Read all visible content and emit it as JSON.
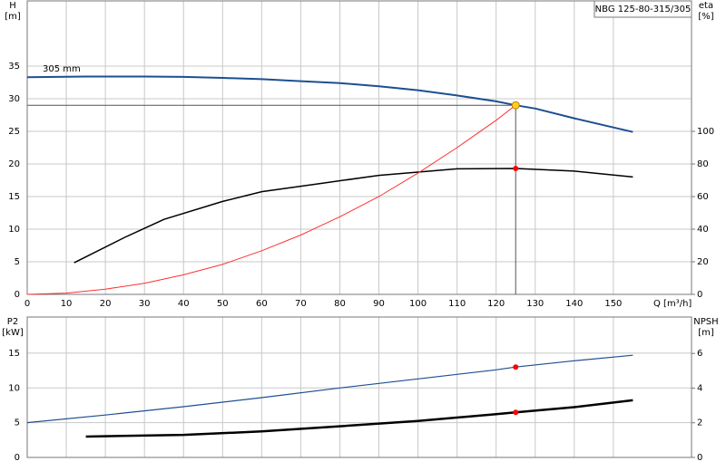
{
  "chart_data": [
    {
      "type": "line",
      "title": "NBG 125-80-315/305",
      "ylabel": "H",
      "yunit": "[m]",
      "y2label": "eta",
      "y2unit": "[%]",
      "xlabel": "Q [m³/h]",
      "annotation": "305 mm",
      "xlim": [
        0,
        170
      ],
      "xticks": [
        0,
        10,
        20,
        30,
        40,
        50,
        60,
        70,
        80,
        90,
        100,
        110,
        120,
        130,
        140,
        150
      ],
      "ylim": [
        0,
        45
      ],
      "yticks": [
        0,
        5,
        10,
        15,
        20,
        25,
        30,
        35
      ],
      "y2lim": [
        0,
        180
      ],
      "y2ticks": [
        0,
        20,
        40,
        60,
        80,
        100
      ],
      "grid": true,
      "series": [
        {
          "color": "#1d4f91",
          "width": 2,
          "x": [
            0,
            15,
            20,
            30,
            40,
            50,
            60,
            70,
            80,
            90,
            100,
            110,
            120,
            125,
            130,
            140,
            150,
            155
          ],
          "values": [
            33.3,
            33.4,
            33.4,
            33.4,
            33.35,
            33.2,
            33.0,
            32.7,
            32.4,
            31.9,
            31.3,
            30.5,
            29.6,
            29.0,
            28.5,
            27.0,
            25.6,
            24.9
          ]
        },
        {
          "color": "#000000",
          "width": 1.5,
          "axis": "y2",
          "x": [
            12,
            25,
            35,
            50,
            60,
            75,
            90,
            100,
            110,
            125,
            140,
            155
          ],
          "values": [
            19.4,
            35,
            46,
            57,
            63,
            68,
            73,
            75,
            77,
            77.2,
            75.6,
            72
          ]
        },
        {
          "color": "#ff3030",
          "width": 1,
          "x": [
            0,
            10,
            20,
            30,
            40,
            50,
            60,
            70,
            80,
            90,
            100,
            110,
            120,
            125
          ],
          "values": [
            0,
            0.2,
            0.8,
            1.7,
            3.0,
            4.6,
            6.7,
            9.1,
            11.9,
            15.0,
            18.6,
            22.5,
            26.7,
            29
          ]
        },
        {
          "color": "#ffd020",
          "marker": true,
          "guides": true,
          "x": [
            125
          ],
          "values": [
            29
          ]
        },
        {
          "color": "#ff0000",
          "marker": true,
          "axis": "y2",
          "x": [
            125
          ],
          "values": [
            77.2
          ]
        }
      ]
    },
    {
      "type": "line",
      "ylabel": "P2",
      "yunit": "[kW]",
      "y2label": "NPSH",
      "y2unit": "[m]",
      "xlim": [
        0,
        170
      ],
      "xticks": [
        0,
        10,
        20,
        30,
        40,
        50,
        60,
        70,
        80,
        90,
        100,
        110,
        120,
        130,
        140,
        150
      ],
      "ylim": [
        0,
        20.2
      ],
      "yticks": [
        0,
        5,
        10,
        15
      ],
      "y2lim": [
        0,
        8.1
      ],
      "y2ticks": [
        0,
        2,
        4,
        6
      ],
      "grid": true,
      "series": [
        {
          "color": "#1d4f91",
          "width": 1.2,
          "x": [
            0,
            20,
            40,
            60,
            80,
            100,
            120,
            125,
            140,
            155
          ],
          "values": [
            5.0,
            6.1,
            7.3,
            8.6,
            10.0,
            11.3,
            12.6,
            13.0,
            13.9,
            14.7
          ]
        },
        {
          "color": "#000000",
          "width": 2.5,
          "axis": "y2",
          "x": [
            15,
            40,
            60,
            80,
            100,
            120,
            125,
            140,
            155
          ],
          "values": [
            1.2,
            1.3,
            1.5,
            1.8,
            2.1,
            2.5,
            2.6,
            2.9,
            3.3
          ]
        },
        {
          "color": "#ff0000",
          "marker": true,
          "x": [
            125
          ],
          "values": [
            13.0
          ]
        },
        {
          "color": "#ff0000",
          "marker": true,
          "axis": "y2",
          "x": [
            125
          ],
          "values": [
            2.6
          ]
        }
      ]
    }
  ]
}
